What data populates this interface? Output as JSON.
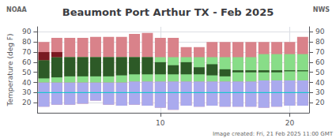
{
  "chart_data": {
    "type": "bar",
    "title": "Beaumont Port Arthur TX - Feb 2025",
    "y_label": "Temperature (deg F)",
    "annotations": [
      "NOAA",
      "NWS",
      "Image created: Fri, 21 Feb 2025 11:00 GMT"
    ],
    "x": [
      1,
      2,
      3,
      4,
      5,
      6,
      7,
      8,
      9,
      10,
      11,
      12,
      13,
      14,
      15,
      16,
      17,
      18,
      19,
      20,
      21
    ],
    "xlim": [
      0.5,
      21.5
    ],
    "xticks": [
      10,
      20
    ],
    "ylim": [
      10,
      95
    ],
    "yticks": [
      20,
      30,
      40,
      50,
      60,
      70,
      80,
      90
    ],
    "y2lim": [
      10,
      95
    ],
    "y2ticks": [
      20,
      30,
      40,
      50,
      60,
      70,
      80,
      90
    ],
    "grid": true,
    "reference_line": {
      "value": 30,
      "color": "#00cccc"
    },
    "series": [
      {
        "color": "#d9828a",
        "low": [
          16,
          18,
          18,
          19,
          22,
          18,
          17,
          18,
          17,
          15,
          13,
          17,
          16,
          17,
          16,
          16,
          16,
          15,
          16,
          17,
          17
        ],
        "high": [
          80,
          84,
          84,
          84,
          85,
          85,
          85,
          88,
          89,
          84,
          84,
          75,
          75,
          80,
          80,
          80,
          80,
          80,
          80,
          80,
          85
        ]
      },
      {
        "color": "#aaaaee",
        "low": [
          16,
          18,
          18,
          19,
          22,
          18,
          17,
          18,
          17,
          15,
          13,
          17,
          16,
          17,
          16,
          16,
          16,
          15,
          16,
          17,
          17
        ],
        "high": [
          40,
          40,
          40,
          40,
          40,
          40,
          40,
          41,
          41,
          41,
          41,
          41,
          41,
          41,
          41,
          41,
          41,
          42,
          42,
          42,
          42
        ]
      },
      {
        "color": "#88dd88",
        "low": [
          40,
          40,
          40,
          40,
          40,
          40,
          40,
          41,
          41,
          41,
          41,
          41,
          41,
          41,
          41,
          41,
          41,
          42,
          42,
          42,
          42
        ],
        "high": [
          62,
          65,
          65,
          65,
          65,
          65,
          65,
          65,
          65,
          65,
          65,
          65,
          65,
          65,
          65,
          65,
          65,
          68,
          68,
          68,
          68
        ]
      },
      {
        "color": "#2d5a27",
        "low": [
          44,
          45,
          46,
          46,
          46,
          46,
          47,
          48,
          48,
          48,
          48,
          48,
          48,
          47,
          46,
          50,
          50,
          50,
          50,
          51,
          51
        ],
        "high": [
          62,
          65,
          65,
          65,
          65,
          65,
          65,
          65,
          65,
          60,
          57,
          60,
          55,
          58,
          53,
          52,
          52,
          52,
          52,
          52,
          52
        ]
      },
      {
        "color": "#7a1a22",
        "low": [
          62,
          65,
          null,
          null,
          null,
          null,
          null,
          null,
          null,
          null,
          null,
          null,
          null,
          null,
          null,
          null,
          null,
          null,
          null,
          null,
          null
        ],
        "high": [
          70,
          70,
          null,
          null,
          null,
          null,
          null,
          null,
          null,
          null,
          null,
          null,
          null,
          null,
          null,
          null,
          null,
          null,
          null,
          null,
          null
        ]
      }
    ]
  }
}
